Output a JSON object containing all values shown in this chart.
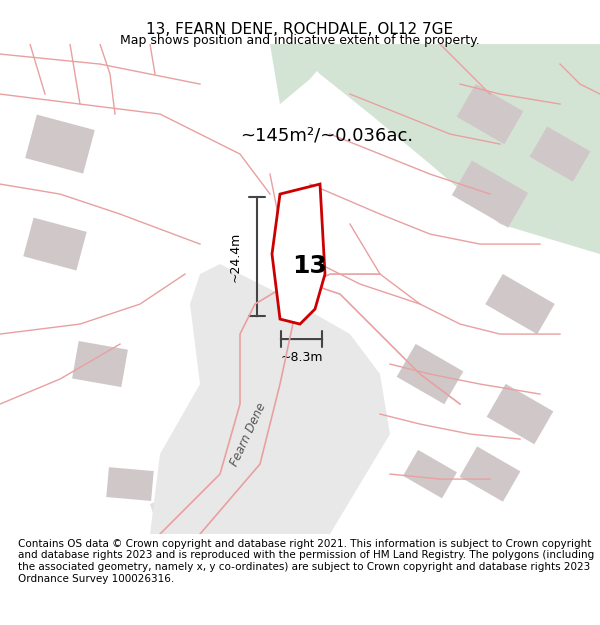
{
  "title": "13, FEARN DENE, ROCHDALE, OL12 7GE",
  "subtitle": "Map shows position and indicative extent of the property.",
  "footer": "Contains OS data © Crown copyright and database right 2021. This information is subject to Crown copyright and database rights 2023 and is reproduced with the permission of HM Land Registry. The polygons (including the associated geometry, namely x, y co-ordinates) are subject to Crown copyright and database rights 2023 Ordnance Survey 100026316.",
  "area_label": "~145m²/~0.036ac.",
  "width_label": "~8.3m",
  "height_label": "~24.4m",
  "property_number": "13",
  "bg_color": "#f5f0f0",
  "green_area_color": "#d4e4d4",
  "road_color": "#e8e8e8",
  "building_color": "#d8d0d0",
  "plot_line_color": "#cc0000",
  "pink_line_color": "#e8a0a0",
  "measure_line_color": "#444444",
  "title_fontsize": 11,
  "subtitle_fontsize": 9,
  "footer_fontsize": 7.5
}
